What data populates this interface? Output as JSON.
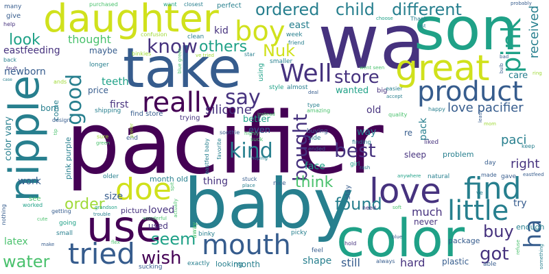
{
  "words": {
    "pacifier": "pacifier",
    "baby": "baby",
    "wa": "wa",
    "son": "son",
    "take": "take",
    "daughter": "daughter",
    "color": "color",
    "nipple": "nipple",
    "use": "use",
    "great": "great",
    "product": "product",
    "love": "love",
    "find": "find",
    "mouth": "mouth",
    "boy": "boy",
    "pink": "pink",
    "tried": "tried",
    "really": "really",
    "well": "Well",
    "store": "store",
    "doe": "doe",
    "little": "little",
    "ordered": "ordered",
    "child": "child",
    "different": "different",
    "ha": "ha",
    "know": "know",
    "good": "good",
    "say": "say",
    "kind": "kind",
    "best": "best",
    "bought": "bought",
    "seem": "seem",
    "wish": "wish",
    "water": "water",
    "order": "order",
    "look": "look",
    "nuk": "Nuk",
    "others": "others",
    "buy": "buy",
    "found": "found",
    "got": "got",
    "received": "received",
    "think": "think",
    "thought": "thought",
    "silicone": "silicone",
    "love_pacifier": "love pacifier",
    "right": "right",
    "paci": "paci",
    "kid": "kid",
    "east": "east",
    "eastfeeding": "eastfeeding",
    "newborn": "newborn",
    "teeth": "teeth",
    "first": "first",
    "maybe": "maybe",
    "price": "price",
    "shape": "shape",
    "still": "still",
    "hard": "hard",
    "much": "much",
    "plastic": "plastic",
    "loved": "loved",
    "latex": "latex",
    "work": "work",
    "month": "month",
    "month_old": "month old",
    "size": "size",
    "thing": "thing",
    "face": "face",
    "old": "old",
    "way": "way",
    "even": "even",
    "better": "better",
    "never": "never",
    "used": "used",
    "wanted": "wanted",
    "sleep": "sleep",
    "problem": "problem",
    "try": "try",
    "care": "care",
    "enough": "enough",
    "pack": "pack",
    "package": "package",
    "looking": "looking",
    "picture": "picture",
    "color_vary": "color vary",
    "pink_purple": "pink purple",
    "born": "born",
    "come": "come",
    "perfect": "perfect",
    "give": "give",
    "help": "help",
    "many": "many",
    "want": "want",
    "closest": "closest",
    "clean": "clean",
    "confusion": "confusion",
    "purchased": "purchased",
    "binkies": "binkies",
    "back": "back",
    "fault": "fault",
    "longer": "longer",
    "week": "week",
    "friend": "friend",
    "smaller": "smaller",
    "soothie": "soothie",
    "using": "using",
    "style": "style",
    "almost": "almost",
    "big": "big",
    "easier": "easier",
    "happy": "happy",
    "end": "end",
    "older": "older",
    "stuck": "stuck",
    "place": "place",
    "nice": "nice",
    "stay": "stay",
    "ended": "ended",
    "girl": "girl",
    "rash": "rash",
    "anywhere": "anywhere",
    "natural": "natural",
    "gave": "gave",
    "day": "day",
    "made": "made",
    "liked": "liked",
    "side": "side",
    "finding": "finding",
    "buying": "buying",
    "trying": "trying",
    "find_store": "find store",
    "shipping": "shipping",
    "design": "design",
    "small": "small",
    "going": "going",
    "see": "see",
    "worked": "worked",
    "make": "make",
    "getting": "getting",
    "cute": "cute",
    "nothing": "nothing",
    "trouble": "trouble",
    "wonderful": "wonderful",
    "binky": "binky",
    "exactly": "exactly",
    "sucking": "sucking",
    "away": "away",
    "feel": "feel",
    "hold": "hold",
    "always": "always",
    "able": "able",
    "need": "need",
    "blue": "blue",
    "soft": "soft",
    "picky": "picky",
    "type": "type",
    "amazing": "amazing",
    "accept": "accept",
    "deal": "deal",
    "quality": "quality",
    "instead": "instead",
    "highly": "highly",
    "suck": "suck",
    "hoping": "hoping",
    "favorite": "favorite",
    "eastfed_baby": "eastfed baby",
    "thank": "Thank",
    "last": "last",
    "choose": "choose",
    "probably": "probably",
    "bad": "bad",
    "bulb": "bulb",
    "ring": "ring",
    "went_seen": "went seen",
    "seen": "seen",
    "star": "star",
    "ve_tried": "ve tried",
    "blue_green": "blue green",
    "ands": "ands",
    "case": "case",
    "tip": "tip",
    "prefer": "prefer",
    "grandson": "grandson",
    "green": "green",
    "sure": "sure",
    "spit": "spit",
    "actually": "actually",
    "flex": "flex",
    "least": "least",
    "mom": "mom",
    "keep": "keep",
    "refuse": "refuse",
    "something": "something",
    "eastfeed": "eastfeed",
    "ve": "ve",
    "re": "re"
  },
  "colors": {
    "dark_purple": "#440154",
    "purple": "#46327e",
    "blue": "#365c8d",
    "teal_blue": "#277f8e",
    "teal": "#1fa187",
    "green": "#4ac16d",
    "light_green": "#a0da39",
    "yellow_green": "#d0e11c"
  }
}
